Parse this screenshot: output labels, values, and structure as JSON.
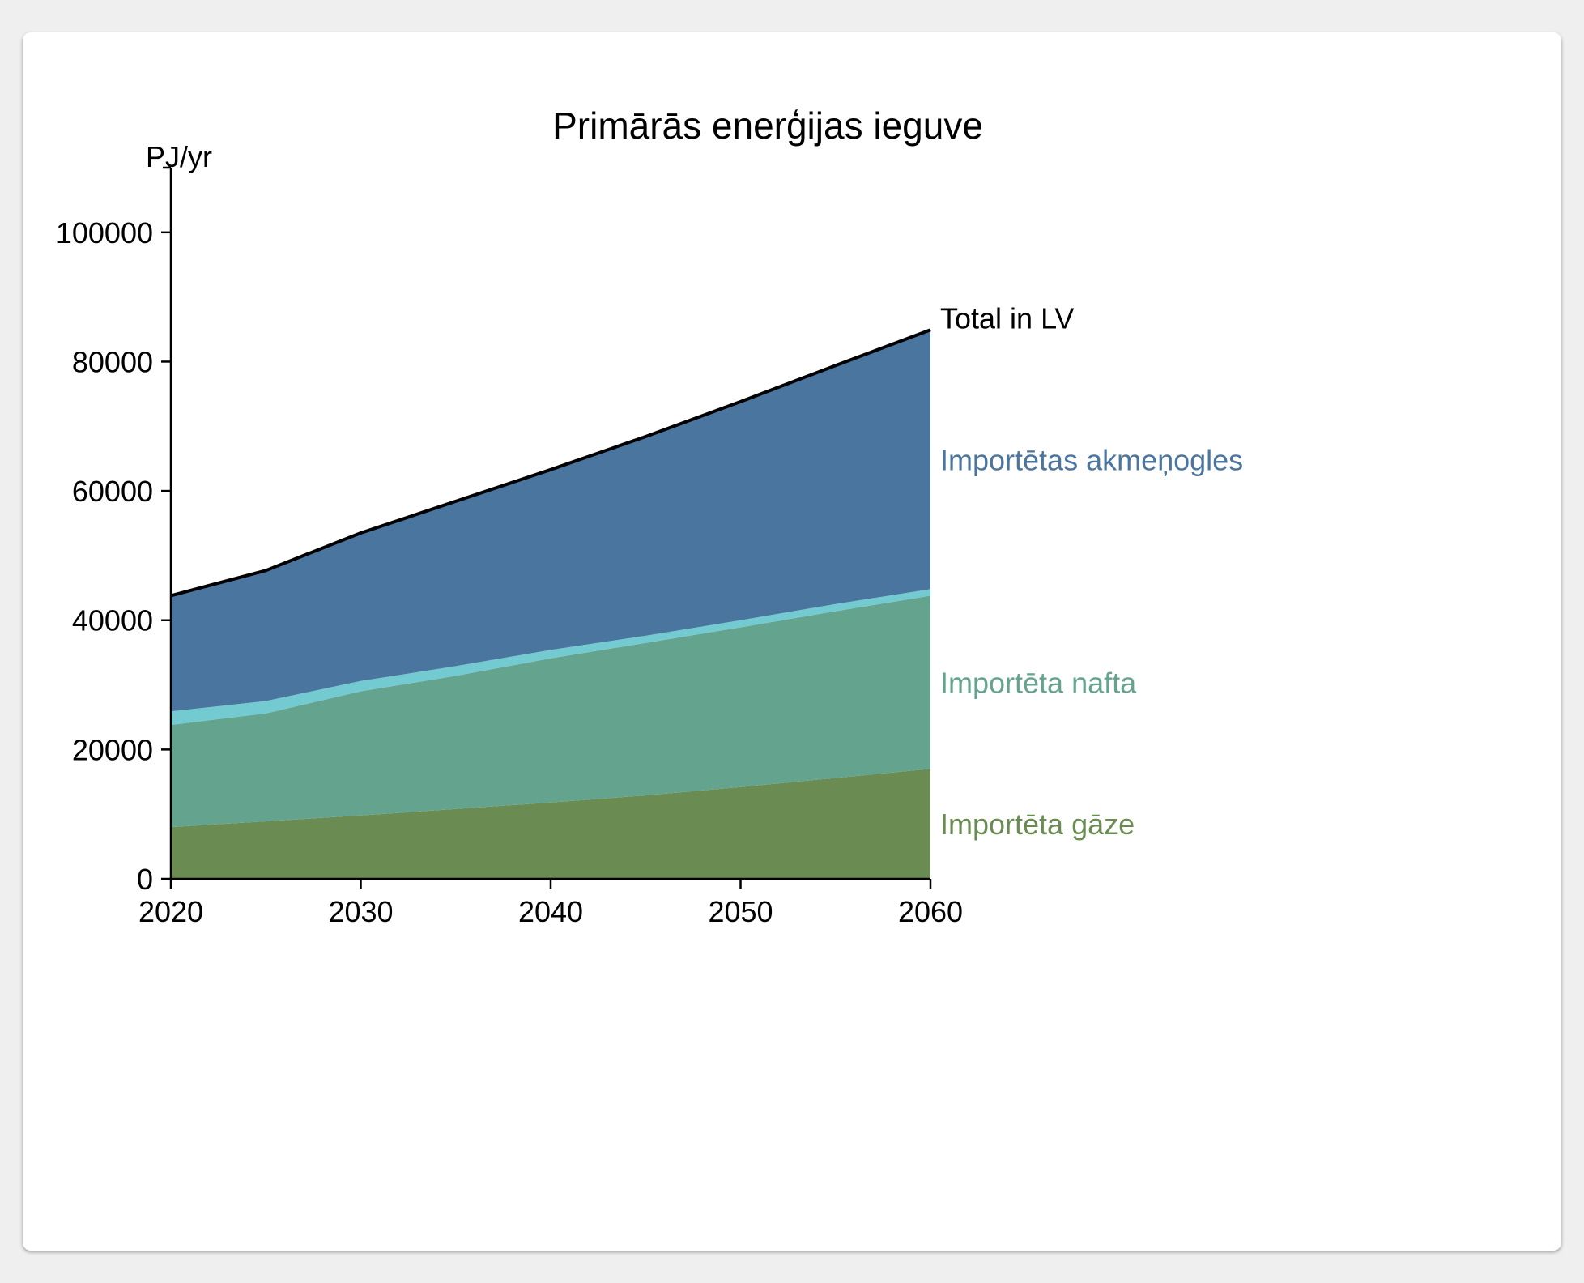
{
  "chart_data": {
    "type": "area",
    "title": "Primārās enerģijas ieguve",
    "ylabel": "PJ/yr",
    "xlabel": "",
    "x": [
      2020,
      2025,
      2030,
      2035,
      2040,
      2045,
      2050,
      2055,
      2060
    ],
    "xlim": [
      2020,
      2060
    ],
    "ylim": [
      0,
      110000
    ],
    "xticks": [
      2020,
      2030,
      2040,
      2050,
      2060
    ],
    "yticks": [
      0,
      20000,
      40000,
      60000,
      80000,
      100000
    ],
    "stacked": true,
    "grid": false,
    "legend": "inline labels at right end of series",
    "series": [
      {
        "name": "Importēta gāze",
        "color": "#6a8c52",
        "values": [
          8000,
          8900,
          9800,
          10800,
          11800,
          12900,
          14200,
          15600,
          17000
        ]
      },
      {
        "name": "Importēta nafta",
        "color": "#64a48f",
        "values": [
          15800,
          16700,
          19200,
          20600,
          22300,
          23600,
          24700,
          25800,
          26800
        ]
      },
      {
        "name": "",
        "color": "#73cbd1",
        "values": [
          2100,
          1900,
          1600,
          1500,
          1300,
          1100,
          1100,
          1100,
          1000
        ]
      },
      {
        "name": "Importētas akmeņogles",
        "color": "#4a759f",
        "values": [
          17900,
          20200,
          22900,
          25500,
          27900,
          30800,
          33800,
          36900,
          40100
        ]
      }
    ],
    "total": {
      "name": "Total in LV",
      "color": "#000000",
      "values": [
        43800,
        47700,
        53500,
        58400,
        63300,
        68400,
        73800,
        79400,
        84900
      ]
    }
  }
}
